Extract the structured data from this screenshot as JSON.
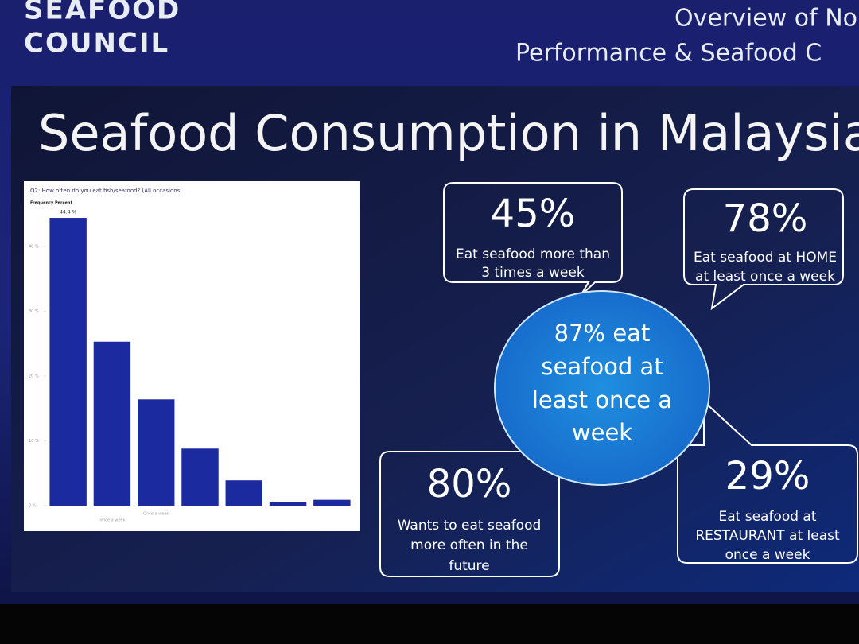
{
  "header": {
    "brand": [
      "SEAFOOD",
      "COUNCIL"
    ],
    "title": [
      "Overview of No",
      "Performance & Seafood C"
    ]
  },
  "slide_title": "Seafood Consumption in Malaysia",
  "callouts": [
    {
      "number": "45%",
      "text": [
        "Eat seafood more than",
        "3 times a week"
      ]
    },
    {
      "number": "78%",
      "text": [
        "Eat seafood at HOME",
        "at least once a week"
      ]
    },
    {
      "number": "80%",
      "text": [
        "Wants to eat seafood",
        "more often in the",
        "future"
      ]
    },
    {
      "number": "29%",
      "text": [
        "Eat seafood at",
        "RESTAURANT at least",
        "once a week"
      ]
    }
  ],
  "center": [
    "87% eat",
    "seafood at",
    "least once a",
    "week"
  ],
  "chart_data": {
    "type": "bar",
    "title": "Q2: How often do you eat fish/seafood? (All occasions",
    "y_label": "Frequency Percent",
    "categories": [
      null,
      "Twice a week",
      "Once a week",
      null,
      null,
      null,
      null
    ],
    "values": [
      44.4,
      25.3,
      16.4,
      8.8,
      3.9,
      0.6,
      0.9
    ],
    "value_labels": [
      "44.4 %",
      null,
      null,
      null,
      null,
      null,
      null
    ],
    "color": "#1c2aa0",
    "ylim": [
      0,
      46
    ],
    "yticks": [
      {
        "value": 0,
        "label": "0 %"
      },
      {
        "value": 10,
        "label": "10 %"
      },
      {
        "value": 20,
        "label": "20 %"
      },
      {
        "value": 30,
        "label": "30 %"
      },
      {
        "value": 40,
        "label": "40 %"
      }
    ]
  }
}
